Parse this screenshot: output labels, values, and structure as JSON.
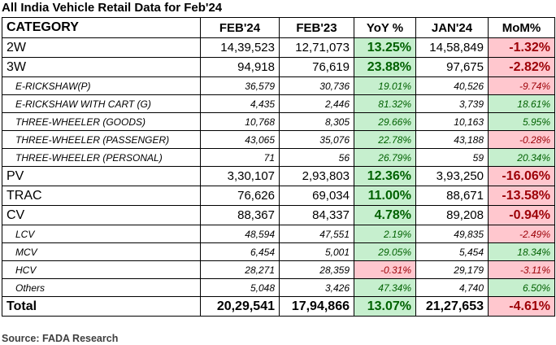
{
  "title": "All India Vehicle Retail Data for Feb'24",
  "source": "Source: FADA Research",
  "headers": [
    "CATEGORY",
    "FEB'24",
    "FEB'23",
    "YoY %",
    "JAN'24",
    "MoM%"
  ],
  "rows": [
    {
      "type": "main",
      "category": "2W",
      "feb24": "14,39,523",
      "feb23": "12,71,073",
      "yoy": "13.25%",
      "yoy_sign": "pos",
      "jan24": "14,58,849",
      "mom": "-1.32%",
      "mom_sign": "neg"
    },
    {
      "type": "main",
      "category": "3W",
      "feb24": "94,918",
      "feb23": "76,619",
      "yoy": "23.88%",
      "yoy_sign": "pos",
      "jan24": "97,675",
      "mom": "-2.82%",
      "mom_sign": "neg"
    },
    {
      "type": "sub",
      "category": "E-RICKSHAW(P)",
      "feb24": "36,579",
      "feb23": "30,736",
      "yoy": "19.01%",
      "yoy_sign": "pos",
      "jan24": "40,526",
      "mom": "-9.74%",
      "mom_sign": "neg"
    },
    {
      "type": "sub",
      "category": "E-RICKSHAW WITH CART (G)",
      "feb24": "4,435",
      "feb23": "2,446",
      "yoy": "81.32%",
      "yoy_sign": "pos",
      "jan24": "3,739",
      "mom": "18.61%",
      "mom_sign": "pos"
    },
    {
      "type": "sub",
      "category": "THREE-WHEELER (GOODS)",
      "feb24": "10,768",
      "feb23": "8,305",
      "yoy": "29.66%",
      "yoy_sign": "pos",
      "jan24": "10,163",
      "mom": "5.95%",
      "mom_sign": "pos"
    },
    {
      "type": "sub",
      "category": "THREE-WHEELER (PASSENGER)",
      "feb24": "43,065",
      "feb23": "35,076",
      "yoy": "22.78%",
      "yoy_sign": "pos",
      "jan24": "43,188",
      "mom": "-0.28%",
      "mom_sign": "neg"
    },
    {
      "type": "sub",
      "category": "THREE-WHEELER (PERSONAL)",
      "feb24": "71",
      "feb23": "56",
      "yoy": "26.79%",
      "yoy_sign": "pos",
      "jan24": "59",
      "mom": "20.34%",
      "mom_sign": "pos"
    },
    {
      "type": "main",
      "category": "PV",
      "feb24": "3,30,107",
      "feb23": "2,93,803",
      "yoy": "12.36%",
      "yoy_sign": "pos",
      "jan24": "3,93,250",
      "mom": "-16.06%",
      "mom_sign": "neg"
    },
    {
      "type": "main",
      "category": "TRAC",
      "feb24": "76,626",
      "feb23": "69,034",
      "yoy": "11.00%",
      "yoy_sign": "pos",
      "jan24": "88,671",
      "mom": "-13.58%",
      "mom_sign": "neg"
    },
    {
      "type": "main",
      "category": "CV",
      "feb24": "88,367",
      "feb23": "84,337",
      "yoy": "4.78%",
      "yoy_sign": "pos",
      "jan24": "89,208",
      "mom": "-0.94%",
      "mom_sign": "neg"
    },
    {
      "type": "sub",
      "category": "LCV",
      "feb24": "48,594",
      "feb23": "47,551",
      "yoy": "2.19%",
      "yoy_sign": "pos",
      "jan24": "49,835",
      "mom": "-2.49%",
      "mom_sign": "neg"
    },
    {
      "type": "sub",
      "category": "MCV",
      "feb24": "6,454",
      "feb23": "5,001",
      "yoy": "29.05%",
      "yoy_sign": "pos",
      "jan24": "5,454",
      "mom": "18.34%",
      "mom_sign": "pos"
    },
    {
      "type": "sub",
      "category": "HCV",
      "feb24": "28,271",
      "feb23": "28,359",
      "yoy": "-0.31%",
      "yoy_sign": "neg",
      "jan24": "29,179",
      "mom": "-3.11%",
      "mom_sign": "neg"
    },
    {
      "type": "sub",
      "category": "Others",
      "feb24": "5,048",
      "feb23": "3,426",
      "yoy": "47.34%",
      "yoy_sign": "pos",
      "jan24": "4,740",
      "mom": "6.50%",
      "mom_sign": "pos"
    },
    {
      "type": "total",
      "category": "Total",
      "feb24": "20,29,541",
      "feb23": "17,94,866",
      "yoy": "13.07%",
      "yoy_sign": "pos",
      "jan24": "21,27,653",
      "mom": "-4.61%",
      "mom_sign": "neg"
    }
  ],
  "colors": {
    "positive_bg": "#c6efce",
    "positive_fg": "#006100",
    "negative_bg": "#ffc7ce",
    "negative_fg": "#9c0006"
  }
}
